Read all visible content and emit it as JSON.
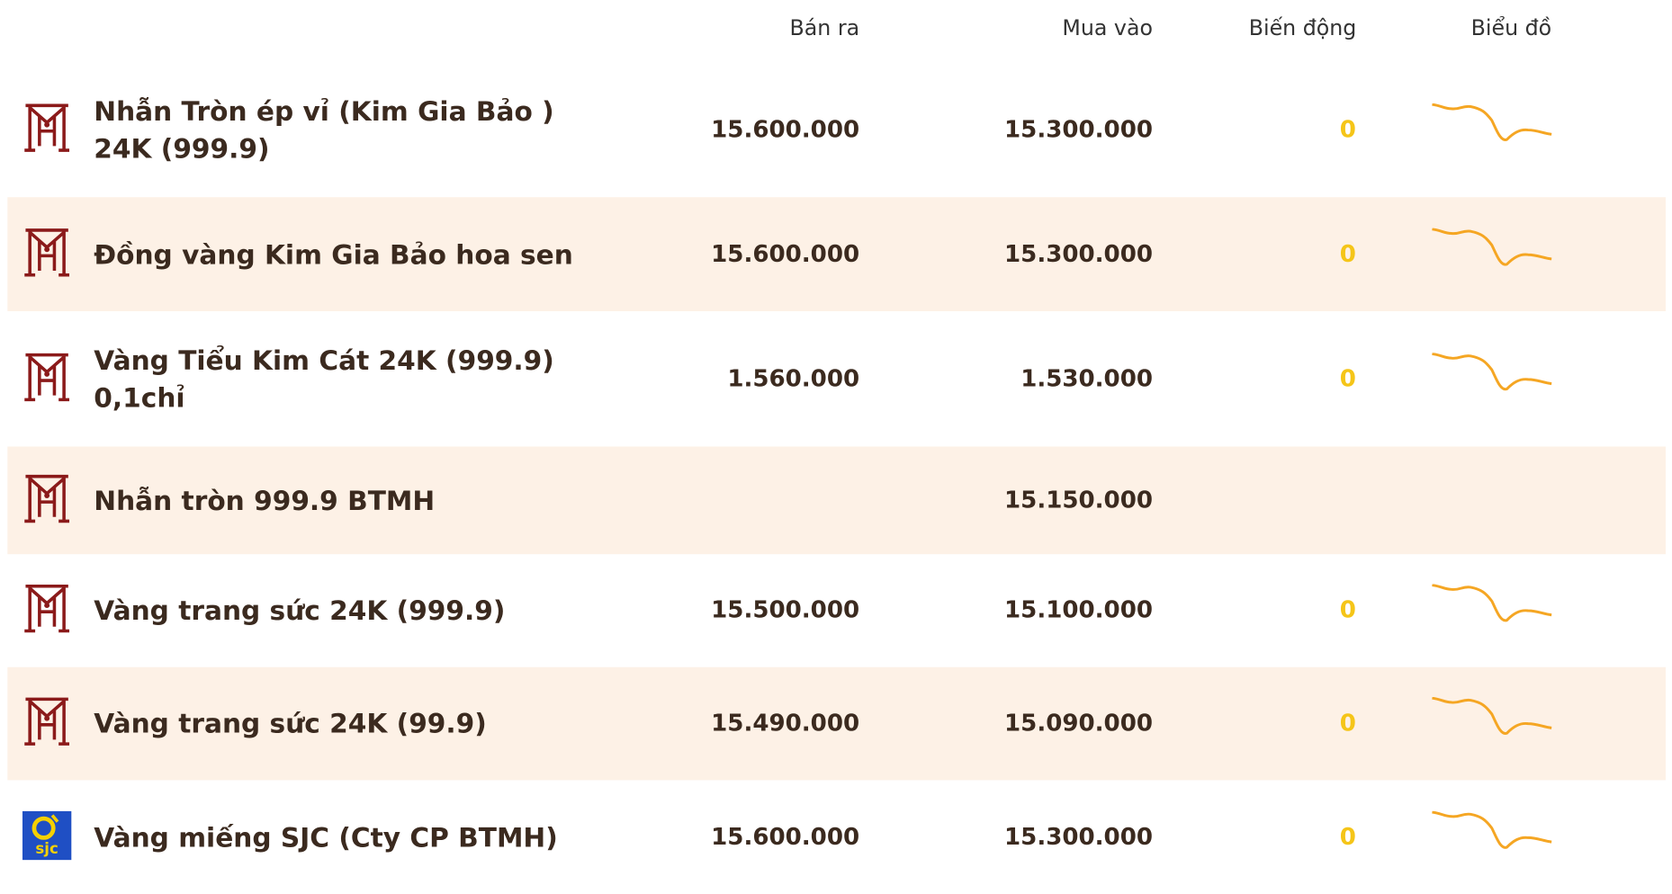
{
  "table": {
    "headers": [
      "Bán ra",
      "Mua vào",
      "Biến động",
      "Biểu đồ"
    ],
    "rows": [
      {
        "name": "Nhẫn Tròn ép vỉ (Kim Gia Bảo ) 24K (999.9)",
        "sell": "15.600.000",
        "buy": "15.300.000",
        "change": "0"
      },
      {
        "name": "Đồng vàng Kim Gia Bảo hoa sen",
        "sell": "15.600.000",
        "buy": "15.300.000",
        "change": "0"
      },
      {
        "name": "Vàng Tiểu Kim Cát 24K (999.9) 0,1chỉ",
        "sell": "1.560.000",
        "buy": "1.530.000",
        "change": "0"
      },
      {
        "name": "Nhẫn tròn 999.9 BTMH",
        "sell": null,
        "buy": "15.150.000",
        "change": null
      },
      {
        "name": "Vàng trang sức 24K (999.9)",
        "sell": "15.500.000",
        "buy": "15.100.000",
        "change": "0"
      },
      {
        "name": "Vàng trang sức 24K (99.9)",
        "sell": "15.490.000",
        "buy": "15.090.000",
        "change": "0"
      },
      {
        "name": "Vàng miếng SJC (Cty CP BTMH)",
        "sell": "15.600.000",
        "buy": "15.300.000",
        "change": "0",
        "logo_text": "sjc"
      }
    ]
  }
}
